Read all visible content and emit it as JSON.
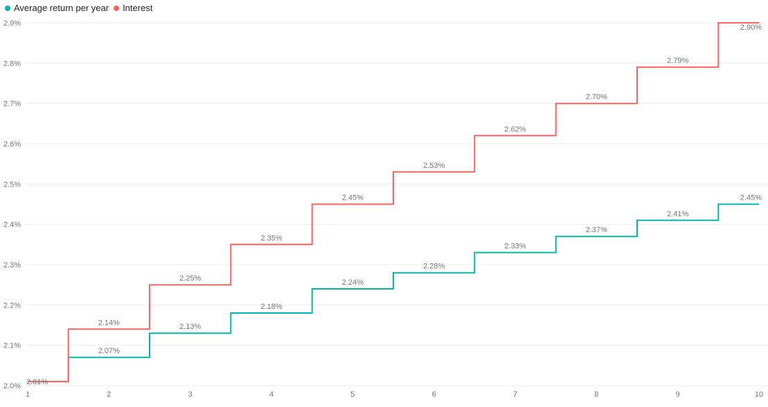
{
  "chart_data": {
    "type": "line",
    "subtype": "step",
    "title": "",
    "xlabel": "",
    "ylabel": "",
    "grid": "horizontal-only",
    "legend_position": "top-left",
    "x": [
      1,
      2,
      3,
      4,
      5,
      6,
      7,
      8,
      9,
      10
    ],
    "x_tick_labels": [
      "1",
      "2",
      "3",
      "4",
      "5",
      "6",
      "7",
      "8",
      "9",
      "10"
    ],
    "ylim": [
      2.0,
      2.9
    ],
    "y_tick_labels": [
      "2.0%",
      "2.1%",
      "2.2%",
      "2.3%",
      "2.4%",
      "2.5%",
      "2.6%",
      "2.7%",
      "2.8%",
      "2.9%"
    ],
    "gridline_color": "#ECECEC",
    "axis_label_color": "#777777",
    "data_label_color": "#777777",
    "series": [
      {
        "name": "Average return per year",
        "color": "#01B8AA",
        "values": [
          2.01,
          2.07,
          2.13,
          2.18,
          2.24,
          2.28,
          2.33,
          2.37,
          2.41,
          2.45
        ],
        "labels": [
          "",
          "2.07%",
          "2.13%",
          "2.18%",
          "2.24%",
          "2.28%",
          "2.33%",
          "2.37%",
          "2.41%",
          "2.45%"
        ]
      },
      {
        "name": "Interest",
        "color": "#FD625E",
        "values": [
          2.01,
          2.14,
          2.25,
          2.35,
          2.45,
          2.53,
          2.62,
          2.7,
          2.79,
          2.9
        ],
        "labels": [
          "2.01%",
          "2.14%",
          "2.25%",
          "2.35%",
          "2.45%",
          "2.53%",
          "2.62%",
          "2.70%",
          "2.79%",
          "2.90%"
        ]
      }
    ]
  }
}
